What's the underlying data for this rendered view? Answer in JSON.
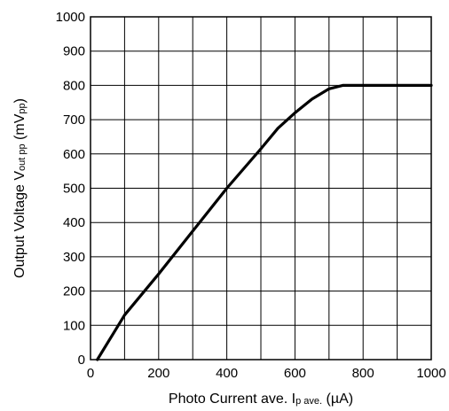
{
  "chart_data": {
    "type": "line",
    "title": "",
    "xlabel": {
      "main": "Photo Current ave. I",
      "subscript": "p ave.",
      "unit": " (µA)"
    },
    "ylabel": {
      "main": "Output Voltage V",
      "subscript": "out pp",
      "unit_open": " (mV",
      "unit_subscript": "pp",
      "unit_close": ")"
    },
    "xlim": [
      0,
      1000
    ],
    "ylim": [
      0,
      1000
    ],
    "xticks": [
      0,
      200,
      400,
      600,
      800,
      1000
    ],
    "yticks": [
      0,
      100,
      200,
      300,
      400,
      500,
      600,
      700,
      800,
      900,
      1000
    ],
    "grid": true,
    "x_minor_grid_step": 100,
    "series": [
      {
        "color": "#000000",
        "x": [
          20,
          100,
          200,
          300,
          400,
          500,
          550,
          600,
          650,
          700,
          740,
          800,
          900,
          1000
        ],
        "y": [
          0,
          130,
          250,
          375,
          500,
          615,
          675,
          720,
          760,
          790,
          800,
          800,
          800,
          800
        ]
      }
    ]
  }
}
